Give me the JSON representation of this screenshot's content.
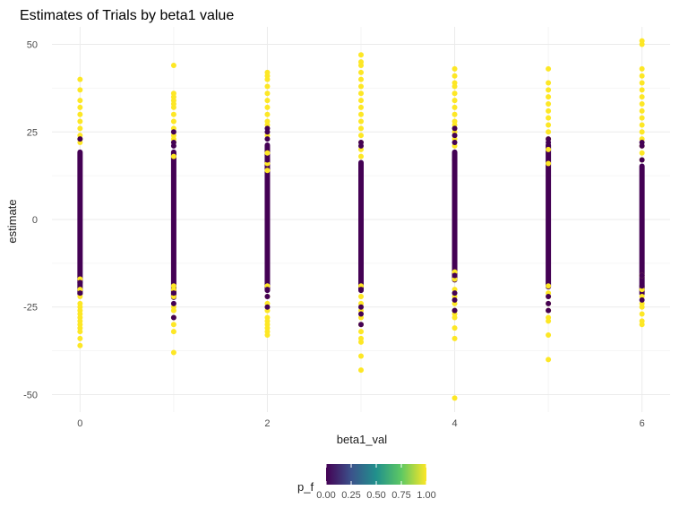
{
  "chart_data": {
    "type": "scatter",
    "title": "Estimates of Trials by beta1 value",
    "xlabel": "beta1_val",
    "ylabel": "estimate",
    "xlim": [
      -0.3,
      6.3
    ],
    "ylim": [
      -55,
      55
    ],
    "x_ticks": [
      0,
      2,
      4,
      6
    ],
    "x_tick_labels": [
      "0",
      "2",
      "4",
      "6"
    ],
    "y_ticks": [
      -50,
      -25,
      0,
      25,
      50
    ],
    "y_tick_labels": [
      "-50",
      "-25",
      "0",
      "25",
      "50"
    ],
    "grid": true,
    "legend_position": "bottom",
    "legend": {
      "title": "p_f",
      "type": "colorbar",
      "palette": "viridis",
      "breaks": [
        0,
        0.25,
        0.5,
        0.75,
        1.0
      ],
      "labels": [
        "0.00",
        "0.25",
        "0.50",
        "0.75",
        "1.00"
      ],
      "colors": [
        "#440154",
        "#3b528b",
        "#21908c",
        "#5dc863",
        "#fde725"
      ]
    },
    "colors": {
      "low": "#440154",
      "high": "#fde725"
    },
    "series": [
      {
        "x": 0,
        "low_range": [
          -22,
          20
        ],
        "high_points": [
          40,
          37,
          34,
          32,
          30,
          28,
          26,
          24,
          23,
          22,
          -17,
          -20,
          -22,
          -24,
          -25,
          -26,
          -27,
          -28,
          -29,
          -30,
          -31,
          -32,
          -34,
          -36
        ],
        "low_points": [
          23,
          -18,
          -21
        ]
      },
      {
        "x": 1,
        "low_range": [
          -23,
          20
        ],
        "high_points": [
          44,
          36,
          35,
          34,
          33,
          32,
          30,
          28,
          26,
          24,
          23,
          22,
          18,
          -19,
          -20,
          -22,
          -25,
          -26,
          -28,
          -30,
          -32,
          -38
        ],
        "low_points": [
          25,
          22,
          21,
          -21,
          -24,
          -28
        ]
      },
      {
        "x": 2,
        "low_range": [
          -21,
          22
        ],
        "high_points": [
          42,
          41,
          40,
          38,
          36,
          34,
          32,
          30,
          28,
          27,
          24,
          19,
          16,
          14,
          -19,
          -22,
          -24,
          -26,
          -28,
          -29,
          -30,
          -31,
          -32,
          -33
        ],
        "low_points": [
          26,
          25,
          23,
          17,
          -20,
          -22,
          -25
        ]
      },
      {
        "x": 3,
        "low_range": [
          -21,
          17
        ],
        "high_points": [
          47,
          45,
          44,
          42,
          40,
          38,
          36,
          34,
          32,
          30,
          28,
          26,
          24,
          22,
          20,
          18,
          -19,
          -22,
          -24,
          -26,
          -28,
          -30,
          -32,
          -34,
          -35,
          -39,
          -43
        ],
        "low_points": [
          22,
          21,
          -20,
          -25,
          -27,
          -30
        ]
      },
      {
        "x": 4,
        "low_range": [
          -18,
          20
        ],
        "high_points": [
          43,
          41,
          39,
          38,
          36,
          34,
          32,
          30,
          28,
          27,
          25,
          23,
          21,
          -15,
          -17,
          -20,
          -22,
          -24,
          -26,
          -27,
          -28,
          -31,
          -34,
          -51
        ],
        "low_points": [
          26,
          24,
          22,
          17,
          -16,
          -21,
          -23,
          -26
        ]
      },
      {
        "x": 5,
        "low_range": [
          -20,
          22
        ],
        "high_points": [
          43,
          39,
          37,
          35,
          33,
          31,
          29,
          27,
          25,
          23,
          20,
          16,
          -19,
          -21,
          -22,
          -24,
          -26,
          -28,
          -29,
          -33,
          -40
        ],
        "low_points": [
          23,
          22,
          -22,
          -24,
          -26
        ]
      },
      {
        "x": 6,
        "low_range": [
          -22,
          16
        ],
        "high_points": [
          51,
          50,
          43,
          41,
          39,
          37,
          35,
          33,
          31,
          29,
          27,
          25,
          23,
          21,
          19,
          17,
          -16,
          -20,
          -22,
          -24,
          -25,
          -27,
          -29,
          -30
        ],
        "low_points": [
          22,
          21,
          17,
          -16,
          -19,
          -23
        ]
      }
    ]
  }
}
